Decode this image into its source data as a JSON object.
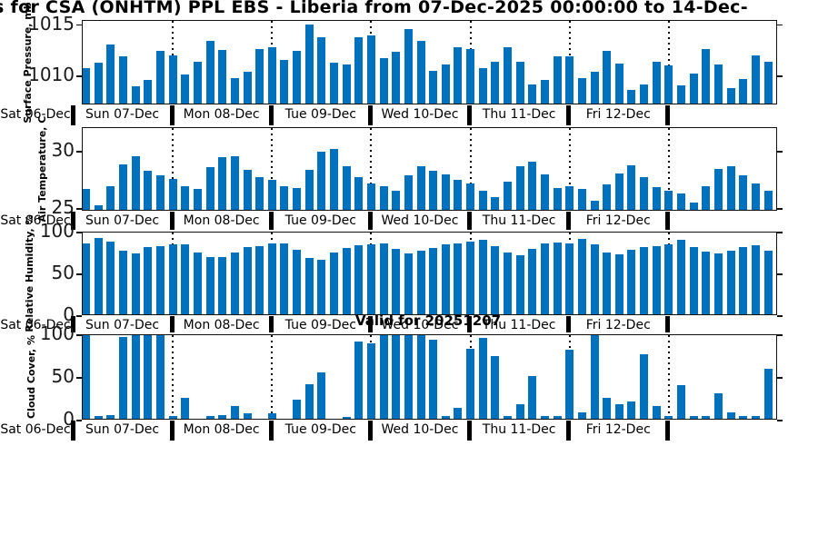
{
  "title": "s for CSA (ONHTM) PPL EBS  - Liberia from 07-Dec-2025 00:00:00 to 14-Dec-",
  "annotation": "Valid for 20251207",
  "bar_color": "#0072BD",
  "x_axis": {
    "day_labels": [
      "Sat 06-Dec",
      "Sun 07-Dec",
      "Mon 08-Dec",
      "Tue 09-Dec",
      "Wed 10-Dec",
      "Thu 11-Dec",
      "Fri 12-Dec"
    ],
    "bars_per_day": 8
  },
  "chart_data": [
    {
      "type": "bar",
      "ylabel": "Surface Pressure, mb",
      "yticks": [
        1010,
        1015
      ],
      "ylim": [
        1007.2,
        1015.4
      ],
      "values": [
        1010.6,
        1011.2,
        1012.9,
        1011.8,
        1008.9,
        1009.5,
        1012.3,
        1011.9,
        1010.0,
        1011.3,
        1013.3,
        1012.4,
        1009.7,
        1010.3,
        1012.5,
        1012.7,
        1011.4,
        1012.3,
        1014.9,
        1013.6,
        1011.2,
        1011.0,
        1013.6,
        1013.8,
        1011.6,
        1012.2,
        1014.4,
        1013.3,
        1010.4,
        1011.0,
        1012.7,
        1012.5,
        1010.6,
        1011.3,
        1012.7,
        1011.3,
        1009.1,
        1009.5,
        1011.8,
        1011.8,
        1009.7,
        1010.3,
        1012.3,
        1011.1,
        1008.5,
        1009.1,
        1011.3,
        1010.9,
        1009.0,
        1010.1,
        1012.5,
        1011.0,
        1008.7,
        1009.6,
        1011.9,
        1011.3
      ]
    },
    {
      "type": "bar",
      "ylabel": "Air Temperature, C",
      "yticks": [
        25,
        30
      ],
      "ylim": [
        24.8,
        32.1
      ],
      "values": [
        26.6,
        25.2,
        26.9,
        28.8,
        29.5,
        28.2,
        27.8,
        27.5,
        26.9,
        26.6,
        28.5,
        29.4,
        29.5,
        28.3,
        27.7,
        27.4,
        26.9,
        26.7,
        28.3,
        29.9,
        30.1,
        28.6,
        27.7,
        27.1,
        26.9,
        26.5,
        27.8,
        28.6,
        28.2,
        27.9,
        27.4,
        27.1,
        26.5,
        25.9,
        27.3,
        28.6,
        29.0,
        27.9,
        26.7,
        26.9,
        26.6,
        25.6,
        27.0,
        28.0,
        28.7,
        27.7,
        26.8,
        26.5,
        26.2,
        25.4,
        26.9,
        28.4,
        28.6,
        27.8,
        27.1,
        26.5
      ]
    },
    {
      "type": "bar",
      "ylabel": "Relative Humidity, %",
      "yticks": [
        0,
        50,
        100
      ],
      "ylim": [
        0,
        100
      ],
      "values": [
        85,
        91,
        87,
        76,
        73,
        81,
        82,
        84,
        84,
        74,
        69,
        68,
        74,
        81,
        82,
        85,
        85,
        77,
        67,
        65,
        74,
        79,
        83,
        84,
        85,
        78,
        73,
        76,
        79,
        84,
        85,
        87,
        89,
        82,
        74,
        71,
        78,
        85,
        86,
        85,
        90,
        84,
        74,
        72,
        77,
        81,
        82,
        84,
        89,
        81,
        75,
        73,
        76,
        80,
        83,
        76
      ]
    },
    {
      "type": "bar",
      "ylabel": "Cloud Cover, %",
      "yticks": [
        0,
        50,
        100
      ],
      "ylim": [
        0,
        100
      ],
      "values": [
        100,
        3,
        4,
        96,
        100,
        100,
        98,
        3,
        24,
        0,
        3,
        4,
        15,
        6,
        0,
        6,
        0,
        22,
        41,
        54,
        0,
        2,
        90,
        88,
        100,
        100,
        100,
        100,
        93,
        3,
        13,
        82,
        95,
        73,
        3,
        17,
        50,
        3,
        3,
        81,
        8,
        98,
        25,
        17,
        20,
        76,
        15,
        3,
        39,
        3,
        3,
        30,
        8,
        3,
        3,
        59
      ]
    }
  ]
}
